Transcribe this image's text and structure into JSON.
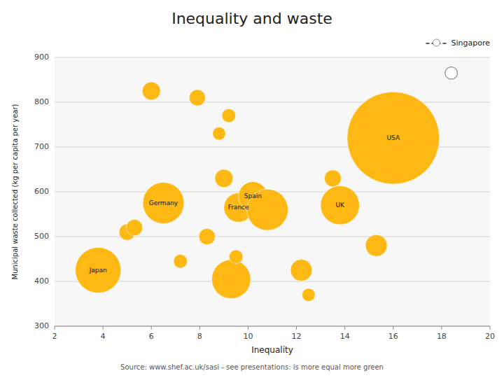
{
  "chart_data": {
    "type": "scatter",
    "title": "Inequality and waste",
    "x_label": "Inequality",
    "y_label": "Municipal waste collected (kg per capita per year)",
    "source": "Source: www.shef.ac.uk/sasi - see presentations: is more equal more green",
    "xlim": [
      2,
      20
    ],
    "ylim": [
      300,
      900
    ],
    "xticks": [
      2,
      4,
      6,
      8,
      10,
      12,
      14,
      16,
      18,
      20
    ],
    "yticks": [
      300,
      400,
      500,
      600,
      700,
      800,
      900
    ],
    "grid": true,
    "legend": "upper right",
    "series": [
      {
        "color": "#FDB813",
        "marker": "circle",
        "x": [
          3.8,
          5.0,
          5.3,
          6.0,
          6.5,
          7.2,
          7.9,
          8.3,
          8.8,
          9.0,
          9.2,
          9.3,
          9.5,
          9.6,
          10.2,
          10.8,
          12.2,
          12.5,
          13.5,
          13.8,
          15.3,
          16.0
        ],
        "values": [
          425,
          510,
          520,
          825,
          575,
          445,
          810,
          500,
          730,
          630,
          770,
          405,
          455,
          565,
          590,
          560,
          425,
          370,
          630,
          570,
          480,
          720
        ],
        "sizes": [
          2200,
          280,
          280,
          350,
          1800,
          200,
          280,
          280,
          180,
          350,
          200,
          1600,
          200,
          900,
          900,
          1800,
          500,
          180,
          300,
          1600,
          500,
          9000
        ],
        "labels": [
          "Japan",
          null,
          null,
          null,
          "Germany",
          null,
          null,
          null,
          null,
          null,
          null,
          null,
          null,
          "France",
          "Spain",
          null,
          null,
          null,
          null,
          "UK",
          null,
          "USA"
        ]
      },
      {
        "name": "Singapore",
        "color": "#ffffff",
        "marker": "circle",
        "line_style": "dashed",
        "x": [
          18.4
        ],
        "values": [
          865
        ],
        "sizes": [
          160
        ]
      }
    ]
  }
}
